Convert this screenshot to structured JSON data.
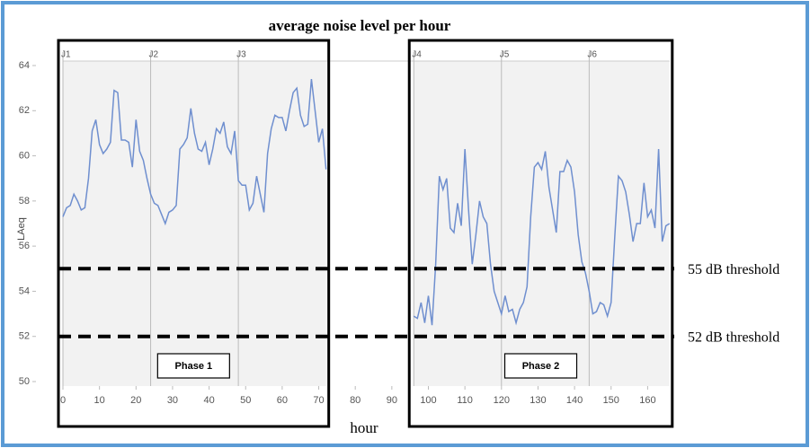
{
  "chart_data": {
    "type": "line",
    "title": "average noise level per hour",
    "x_label": "hour",
    "y_label": "LAeq",
    "x": [
      0,
      1,
      2,
      3,
      4,
      5,
      6,
      7,
      8,
      9,
      10,
      11,
      12,
      13,
      14,
      15,
      16,
      17,
      18,
      19,
      20,
      21,
      22,
      23,
      24,
      25,
      26,
      27,
      28,
      29,
      30,
      31,
      32,
      33,
      34,
      35,
      36,
      37,
      38,
      39,
      40,
      41,
      42,
      43,
      44,
      45,
      46,
      47,
      48,
      49,
      50,
      51,
      52,
      53,
      54,
      55,
      56,
      57,
      58,
      59,
      60,
      61,
      62,
      63,
      64,
      65,
      66,
      67,
      68,
      69,
      70,
      71,
      72,
      73,
      74,
      75,
      76,
      77,
      78,
      79,
      80,
      81,
      82,
      83,
      84,
      85,
      86,
      87,
      88,
      89,
      90,
      91,
      92,
      93,
      94,
      95,
      96,
      97,
      98,
      99,
      100,
      101,
      102,
      103,
      104,
      105,
      106,
      107,
      108,
      109,
      110,
      111,
      112,
      113,
      114,
      115,
      116,
      117,
      118,
      119,
      120,
      121,
      122,
      123,
      124,
      125,
      126,
      127,
      128,
      129,
      130,
      131,
      132,
      133,
      134,
      135,
      136,
      137,
      138,
      139,
      140,
      141,
      142,
      143,
      144,
      145,
      146,
      147,
      148,
      149,
      150,
      151,
      152,
      153,
      154,
      155,
      156,
      157,
      158,
      159,
      160,
      161,
      162,
      163,
      164,
      165,
      166
    ],
    "series": [
      {
        "color": "#6f8fcf",
        "values": [
          57.3,
          57.7,
          57.8,
          58.3,
          58.0,
          57.6,
          57.7,
          59.0,
          61.1,
          61.6,
          60.5,
          60.1,
          60.3,
          60.6,
          62.9,
          62.8,
          60.7,
          60.7,
          60.6,
          59.5,
          61.6,
          60.2,
          59.8,
          59.0,
          58.3,
          57.9,
          57.8,
          57.4,
          57.0,
          57.5,
          57.6,
          57.8,
          60.3,
          60.5,
          60.8,
          62.1,
          61.0,
          60.3,
          60.2,
          60.6,
          59.6,
          60.3,
          61.2,
          61.0,
          61.5,
          60.4,
          60.1,
          61.1,
          58.9,
          58.7,
          58.7,
          57.6,
          57.9,
          59.1,
          58.3,
          57.5,
          60.1,
          61.2,
          61.8,
          61.7,
          61.7,
          61.1,
          62.0,
          62.8,
          63.0,
          61.8,
          61.3,
          61.4,
          63.4,
          62.0,
          60.6,
          61.2,
          59.4,
          null,
          null,
          null,
          null,
          null,
          null,
          null,
          null,
          null,
          null,
          null,
          null,
          null,
          null,
          null,
          null,
          null,
          null,
          null,
          null,
          null,
          null,
          null,
          52.9,
          52.8,
          53.5,
          52.6,
          53.8,
          52.5,
          55.2,
          59.1,
          58.5,
          59.0,
          56.8,
          56.6,
          57.9,
          56.9,
          60.3,
          57.6,
          55.2,
          56.5,
          58.0,
          57.3,
          57.0,
          55.2,
          54.0,
          53.5,
          53.0,
          53.8,
          53.1,
          53.2,
          52.6,
          53.2,
          53.5,
          54.2,
          57.3,
          59.5,
          59.7,
          59.4,
          60.2,
          58.6,
          57.6,
          56.6,
          59.3,
          59.3,
          59.8,
          59.5,
          58.4,
          56.5,
          55.3,
          54.8,
          54.0,
          53.0,
          53.1,
          53.5,
          53.4,
          52.9,
          53.5,
          56.4,
          59.1,
          58.9,
          58.4,
          57.4,
          56.2,
          57.0,
          57.0,
          58.8,
          57.3,
          57.6,
          56.8,
          60.3,
          56.2,
          56.9,
          57.0
        ]
      }
    ],
    "xlim": [
      0,
      166
    ],
    "ylim": [
      50,
      64
    ],
    "xticks": [
      0,
      10,
      20,
      30,
      40,
      50,
      60,
      70,
      80,
      90,
      100,
      110,
      120,
      130,
      140,
      150,
      160
    ],
    "yticks": [
      50,
      52,
      54,
      56,
      58,
      60,
      62,
      64
    ],
    "day_markers": [
      {
        "label": "J1",
        "x": 0
      },
      {
        "label": "J2",
        "x": 24
      },
      {
        "label": "J3",
        "x": 48
      },
      {
        "label": "J4",
        "x": 96
      },
      {
        "label": "J5",
        "x": 120
      },
      {
        "label": "J6",
        "x": 144
      }
    ],
    "thresholds": [
      {
        "value": 55,
        "label": "55 dB threshold"
      },
      {
        "value": 52,
        "label": "52 dB threshold"
      }
    ],
    "phases": [
      {
        "label": "Phase 1",
        "start": 0,
        "end": 72
      },
      {
        "label": "Phase 2",
        "start": 96,
        "end": 166
      }
    ]
  }
}
